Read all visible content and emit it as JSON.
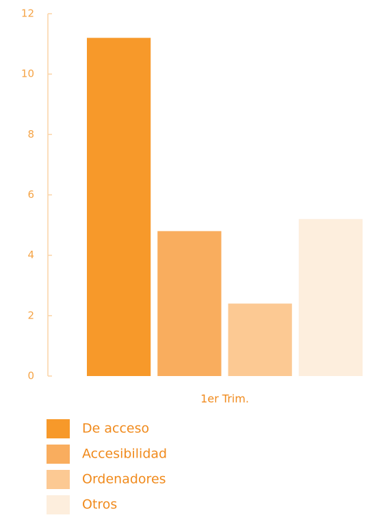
{
  "chart_data": {
    "type": "bar",
    "categories": [
      "1er Trim."
    ],
    "series": [
      {
        "name": "De acceso",
        "color": "#f7992a",
        "values": [
          11.2
        ]
      },
      {
        "name": "Accesibilidad",
        "color": "#f9ad5e",
        "values": [
          4.8
        ]
      },
      {
        "name": "Ordenadores",
        "color": "#fcc993",
        "values": [
          2.4
        ]
      },
      {
        "name": "Otros",
        "color": "#fdeedd",
        "values": [
          5.2
        ]
      }
    ],
    "ylim": [
      0,
      12
    ],
    "yticks": [
      0,
      2,
      4,
      6,
      8,
      10,
      12
    ],
    "grid": false,
    "legend": "bottom"
  }
}
